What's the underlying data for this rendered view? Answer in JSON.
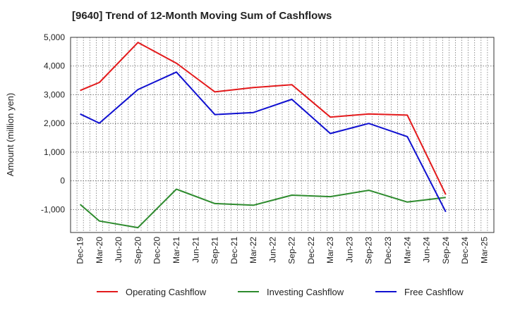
{
  "chart_data": {
    "type": "line",
    "title": "[9640]  Trend of 12-Month Moving Sum of Cashflows",
    "ylabel": "Amount (million yen)",
    "xlabel": "",
    "ylim": [
      -1800,
      5000
    ],
    "yticks": [
      5000,
      4000,
      3000,
      2000,
      1000,
      0,
      -1000
    ],
    "ytick_labels": [
      "5,000",
      "4,000",
      "3,000",
      "2,000",
      "1,000",
      "0",
      "-1,000"
    ],
    "categories": [
      "Dec-19",
      "Mar-20",
      "Jun-20",
      "Sep-20",
      "Dec-20",
      "Mar-21",
      "Jun-21",
      "Sep-21",
      "Dec-21",
      "Mar-22",
      "Jun-22",
      "Sep-22",
      "Dec-22",
      "Mar-23",
      "Jun-23",
      "Sep-23",
      "Dec-23",
      "Mar-24",
      "Jun-24",
      "Sep-24",
      "Dec-24",
      "Mar-25"
    ],
    "grid": true,
    "legend_position": "bottom",
    "series": [
      {
        "name": "Operating Cashflow",
        "color": "#e31a1c",
        "values": [
          3150,
          3430,
          null,
          4820,
          null,
          4100,
          null,
          3100,
          null,
          3250,
          null,
          3350,
          null,
          2220,
          null,
          2330,
          null,
          2290,
          null,
          -480,
          null,
          null
        ]
      },
      {
        "name": "Investing Cashflow",
        "color": "#2e8b2e",
        "values": [
          -820,
          -1400,
          null,
          -1630,
          null,
          -290,
          null,
          -790,
          null,
          -850,
          null,
          -500,
          null,
          -550,
          null,
          -330,
          null,
          -740,
          null,
          -580,
          null,
          null
        ]
      },
      {
        "name": "Free Cashflow",
        "color": "#1010d0",
        "values": [
          2330,
          2010,
          null,
          3180,
          null,
          3790,
          null,
          2310,
          null,
          2380,
          null,
          2840,
          null,
          1650,
          null,
          2000,
          null,
          1540,
          null,
          -1080,
          null,
          null
        ]
      }
    ]
  }
}
